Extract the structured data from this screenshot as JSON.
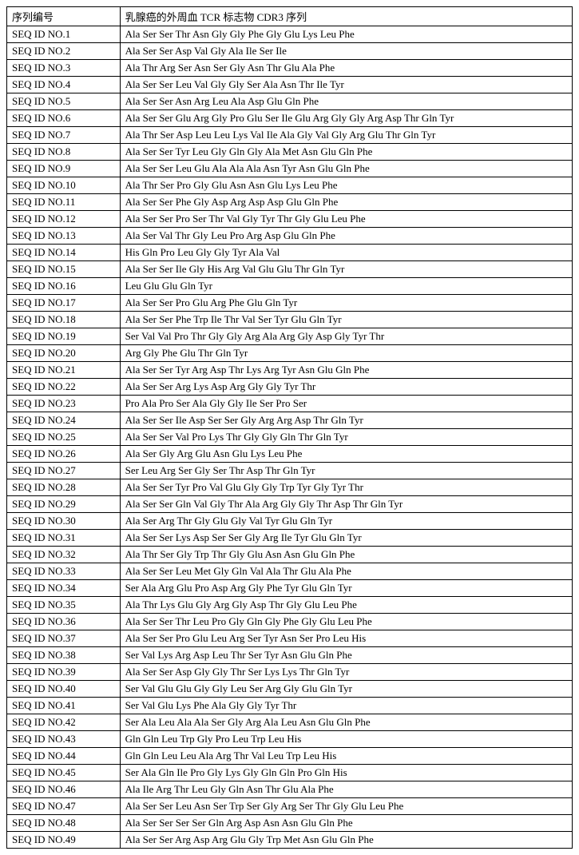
{
  "table": {
    "header_col1": "序列编号",
    "header_col2": "乳腺癌的外周血 TCR 标志物 CDR3 序列",
    "rows": [
      {
        "id": "SEQ ID NO.1",
        "seq": "Ala Ser Ser Thr Asn Gly Gly Phe Gly Glu Lys Leu Phe"
      },
      {
        "id": "SEQ ID NO.2",
        "seq": "Ala Ser Ser Asp Val Gly Ala Ile Ser Ile"
      },
      {
        "id": "SEQ ID NO.3",
        "seq": "Ala Thr Arg Ser Asn Ser Gly Asn Thr Glu Ala Phe"
      },
      {
        "id": "SEQ ID NO.4",
        "seq": "Ala Ser Ser Leu Val Gly Gly Ser Ala Asn Thr Ile Tyr"
      },
      {
        "id": "SEQ ID NO.5",
        "seq": "Ala Ser Ser Asn Arg Leu Ala Asp Glu Gln Phe"
      },
      {
        "id": "SEQ ID NO.6",
        "seq": "Ala Ser Ser Glu Arg Gly Pro Glu Ser Ile Glu Arg Gly Gly Arg Asp Thr Gln Tyr"
      },
      {
        "id": "SEQ ID NO.7",
        "seq": "Ala Thr Ser Asp Leu Leu Lys Val Ile Ala Gly Val Gly Arg Glu Thr Gln Tyr"
      },
      {
        "id": "SEQ ID NO.8",
        "seq": "Ala Ser Ser Tyr Leu Gly Gln Gly Ala Met Asn Glu Gln Phe"
      },
      {
        "id": "SEQ ID NO.9",
        "seq": "Ala Ser Ser Leu Glu Ala Ala Ala Asn Tyr Asn Glu Gln Phe"
      },
      {
        "id": "SEQ ID NO.10",
        "seq": "Ala Thr Ser Pro Gly Glu Asn Asn Glu Lys Leu Phe"
      },
      {
        "id": "SEQ ID NO.11",
        "seq": "Ala Ser Ser Phe Gly Asp Arg Asp Asp Glu Gln Phe"
      },
      {
        "id": "SEQ ID NO.12",
        "seq": "Ala Ser Ser Pro Ser Thr Val Gly Tyr Thr Gly Glu Leu Phe"
      },
      {
        "id": "SEQ ID NO.13",
        "seq": "Ala Ser Val Thr Gly Leu Pro Arg Asp Glu Gln Phe"
      },
      {
        "id": "SEQ ID NO.14",
        "seq": "His Gln Pro Leu Gly Gly Tyr Ala Val"
      },
      {
        "id": "SEQ ID NO.15",
        "seq": "Ala Ser Ser Ile Gly His Arg Val Glu Glu Thr Gln Tyr"
      },
      {
        "id": "SEQ ID NO.16",
        "seq": "Leu Glu Glu Gln Tyr"
      },
      {
        "id": "SEQ ID NO.17",
        "seq": "Ala Ser Ser Pro Glu Arg Phe Glu Gln Tyr"
      },
      {
        "id": "SEQ ID NO.18",
        "seq": "Ala Ser Ser Phe Trp Ile Thr Val Ser Tyr Glu Gln Tyr"
      },
      {
        "id": "SEQ ID NO.19",
        "seq": "Ser Val Val Pro Thr Gly Gly Arg Ala Arg Gly Asp Gly Tyr Thr"
      },
      {
        "id": "SEQ ID NO.20",
        "seq": "Arg Gly Phe Glu Thr Gln Tyr"
      },
      {
        "id": "SEQ ID NO.21",
        "seq": "Ala Ser Ser Tyr Arg Asp Thr Lys Arg Tyr Asn Glu Gln Phe"
      },
      {
        "id": "SEQ ID NO.22",
        "seq": "Ala Ser Ser Arg Lys Asp Arg Gly Gly Tyr Thr"
      },
      {
        "id": "SEQ ID NO.23",
        "seq": "Pro Ala Pro Ser Ala Gly Gly Ile Ser Pro Ser"
      },
      {
        "id": "SEQ ID NO.24",
        "seq": "Ala Ser Ser Ile Asp Ser Ser Gly Arg Arg Asp Thr Gln Tyr"
      },
      {
        "id": "SEQ ID NO.25",
        "seq": "Ala Ser Ser Val Pro Lys Thr Gly Gly Gln Thr Gln Tyr"
      },
      {
        "id": "SEQ ID NO.26",
        "seq": "Ala Ser Gly Arg Glu Asn Glu Lys Leu Phe"
      },
      {
        "id": "SEQ ID NO.27",
        "seq": "Ser Leu Arg Ser Gly Ser Thr Asp Thr Gln Tyr"
      },
      {
        "id": "SEQ ID NO.28",
        "seq": "Ala Ser Ser Tyr Pro Val Glu Gly Gly Trp Tyr Gly Tyr Thr"
      },
      {
        "id": "SEQ ID NO.29",
        "seq": "Ala Ser Ser Gln Val Gly Thr Ala Arg Gly Gly Thr Asp Thr Gln Tyr"
      },
      {
        "id": "SEQ ID NO.30",
        "seq": "Ala Ser Arg Thr Gly Glu Gly Val Tyr Glu Gln Tyr"
      },
      {
        "id": "SEQ ID NO.31",
        "seq": "Ala Ser Ser Lys Asp Ser Ser Gly Arg Ile Tyr Glu Gln Tyr"
      },
      {
        "id": "SEQ ID NO.32",
        "seq": "Ala Thr Ser Gly Trp Thr Gly Glu Asn Asn Glu Gln Phe"
      },
      {
        "id": "SEQ ID NO.33",
        "seq": "Ala Ser Ser Leu Met Gly Gln Val Ala Thr Glu Ala Phe"
      },
      {
        "id": "SEQ ID NO.34",
        "seq": "Ser Ala Arg Glu Pro Asp Arg Gly Phe Tyr Glu Gln Tyr"
      },
      {
        "id": "SEQ ID NO.35",
        "seq": "Ala Thr Lys Glu Gly Arg Gly Asp Thr Gly Glu Leu Phe"
      },
      {
        "id": "SEQ ID NO.36",
        "seq": "Ala Ser Ser Thr Leu Pro Gly Gln Gly Phe Gly Glu Leu Phe"
      },
      {
        "id": "SEQ ID NO.37",
        "seq": "Ala Ser Ser Pro Glu Leu Arg Ser Tyr Asn Ser Pro Leu His"
      },
      {
        "id": "SEQ ID NO.38",
        "seq": "Ser Val Lys Arg Asp Leu Thr Ser Tyr Asn Glu Gln Phe"
      },
      {
        "id": "SEQ ID NO.39",
        "seq": "Ala Ser Ser Asp Gly Gly Thr Ser Lys Lys Thr Gln Tyr"
      },
      {
        "id": "SEQ ID NO.40",
        "seq": "Ser Val Glu Glu Gly Gly Leu Ser Arg Gly Glu Gln Tyr"
      },
      {
        "id": "SEQ ID NO.41",
        "seq": "Ser Val Glu Lys Phe Ala Gly Gly Tyr Thr"
      },
      {
        "id": "SEQ ID NO.42",
        "seq": "Ser Ala Leu Ala Ala Ser Gly Arg Ala Leu Asn Glu Gln Phe"
      },
      {
        "id": "SEQ ID NO.43",
        "seq": "Gln Gln Leu Trp Gly Pro Leu Trp Leu His"
      },
      {
        "id": "SEQ ID NO.44",
        "seq": "Gln Gln Leu Leu Ala Arg Thr Val Leu Trp Leu His"
      },
      {
        "id": "SEQ ID NO.45",
        "seq": "Ser Ala Gln Ile Pro Gly Lys Gly Gln Gln Pro Gln His"
      },
      {
        "id": "SEQ ID NO.46",
        "seq": "Ala Ile Arg Thr Leu Gly Gln Asn Thr Glu Ala Phe"
      },
      {
        "id": "SEQ ID NO.47",
        "seq": "Ala Ser Ser Leu Asn Ser Trp Ser Gly Arg Ser Thr Gly Glu Leu Phe"
      },
      {
        "id": "SEQ ID NO.48",
        "seq": "Ala Ser Ser Ser Ser Gln Arg Asp Asn Asn Glu Gln Phe"
      },
      {
        "id": "SEQ ID NO.49",
        "seq": "Ala Ser Ser Arg Asp Arg Glu Gly Trp Met Asn Glu Gln Phe"
      }
    ]
  }
}
